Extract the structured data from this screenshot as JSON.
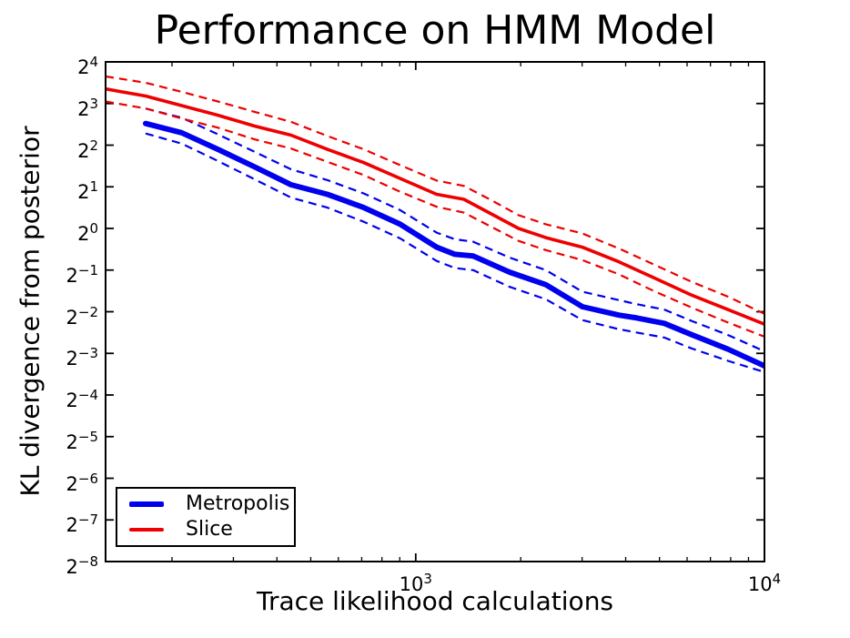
{
  "chart_data": {
    "type": "line",
    "title": "Performance on HMM Model",
    "xlabel": "Trace likelihood calculations",
    "ylabel": "KL divergence from posterior",
    "x_axis": {
      "scale": "log10",
      "range": [
        129,
        10000
      ],
      "major_ticks": [
        {
          "label": "10^3",
          "value": 1000
        },
        {
          "label": "10^4",
          "value": 10000
        }
      ],
      "minor_tick_values": [
        200,
        300,
        400,
        500,
        600,
        700,
        800,
        900,
        2000,
        3000,
        4000,
        5000,
        6000,
        7000,
        8000,
        9000
      ]
    },
    "y_axis": {
      "scale": "log2",
      "range_exponents": [
        4,
        -8
      ],
      "ticks": [
        {
          "label": "2^4",
          "exp": 4
        },
        {
          "label": "2^3",
          "exp": 3
        },
        {
          "label": "2^2",
          "exp": 2
        },
        {
          "label": "2^1",
          "exp": 1
        },
        {
          "label": "2^0",
          "exp": 0
        },
        {
          "label": "2^-1",
          "exp": -1
        },
        {
          "label": "2^-2",
          "exp": -2
        },
        {
          "label": "2^-3",
          "exp": -3
        },
        {
          "label": "2^-4",
          "exp": -4
        },
        {
          "label": "2^-5",
          "exp": -5
        },
        {
          "label": "2^-6",
          "exp": -6
        },
        {
          "label": "2^-7",
          "exp": -7
        },
        {
          "label": "2^-8",
          "exp": -8
        }
      ]
    },
    "legend_position": "lower-left",
    "grid": false,
    "series": [
      {
        "name": "Metropolis",
        "color": "#0000ee",
        "line_width": 6,
        "band_style": "dashed",
        "x": [
          168,
          213,
          271,
          345,
          439,
          558,
          710,
          903,
          1148,
          1295,
          1461,
          1857,
          2362,
          3005,
          3822,
          4311,
          5163,
          6181,
          7864,
          10000
        ],
        "y_exp": [
          2.52,
          2.3,
          1.9,
          1.48,
          1.05,
          0.82,
          0.5,
          0.1,
          -0.45,
          -0.62,
          -0.66,
          -1.05,
          -1.35,
          -1.88,
          -2.08,
          -2.15,
          -2.28,
          -2.55,
          -2.9,
          -3.3
        ],
        "upper_exp": [
          2.88,
          2.66,
          2.26,
          1.84,
          1.42,
          1.16,
          0.84,
          0.44,
          -0.1,
          -0.26,
          -0.32,
          -0.7,
          -1.0,
          -1.52,
          -1.72,
          -1.82,
          -1.95,
          -2.22,
          -2.56,
          -2.95
        ],
        "lower_exp": [
          2.28,
          2.04,
          1.62,
          1.18,
          0.74,
          0.5,
          0.16,
          -0.24,
          -0.78,
          -0.95,
          -1.0,
          -1.4,
          -1.7,
          -2.2,
          -2.42,
          -2.5,
          -2.62,
          -2.88,
          -3.18,
          -3.45
        ]
      },
      {
        "name": "Slice",
        "color": "#ee0000",
        "line_width": 3.6,
        "band_style": "dashed",
        "x": [
          129,
          168,
          213,
          271,
          345,
          439,
          558,
          710,
          903,
          1148,
          1375,
          1647,
          1972,
          2362,
          3005,
          3822,
          4861,
          6181,
          7864,
          10000
        ],
        "y_exp": [
          3.35,
          3.18,
          2.95,
          2.72,
          2.46,
          2.24,
          1.9,
          1.58,
          1.2,
          0.82,
          0.7,
          0.35,
          0.0,
          -0.22,
          -0.45,
          -0.8,
          -1.2,
          -1.6,
          -1.95,
          -2.3
        ],
        "upper_exp": [
          3.65,
          3.5,
          3.28,
          3.05,
          2.8,
          2.56,
          2.22,
          1.9,
          1.52,
          1.15,
          1.02,
          0.68,
          0.32,
          0.1,
          -0.12,
          -0.48,
          -0.88,
          -1.28,
          -1.64,
          -2.05
        ],
        "lower_exp": [
          3.05,
          2.88,
          2.64,
          2.42,
          2.14,
          1.92,
          1.6,
          1.28,
          0.88,
          0.52,
          0.38,
          0.04,
          -0.3,
          -0.52,
          -0.76,
          -1.1,
          -1.52,
          -1.9,
          -2.26,
          -2.6
        ]
      }
    ]
  }
}
